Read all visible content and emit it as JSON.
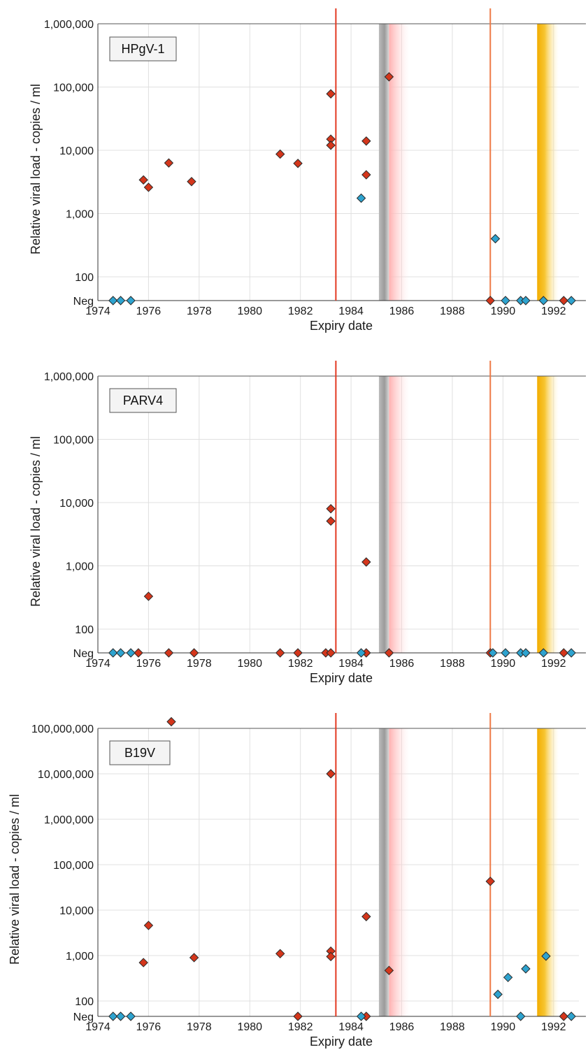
{
  "colors": {
    "positive": "#d4361b",
    "negative": "#2ea3cf",
    "marker_stroke": "#2a2a2a",
    "red_line": "#e23a22",
    "orange_line": "#ee7a45",
    "grey_band": "#a8a8a8",
    "pink_band": "#ffb3b3",
    "gold_band": "#f3b200",
    "grid": "#e0e0e0"
  },
  "chart_data": [
    {
      "type": "scatter",
      "title": "HPgV-1",
      "xlabel": "Expiry date",
      "ylabel": "Relative viral load - copies / ml",
      "xlim": [
        1974,
        1993
      ],
      "x_ticks": [
        1974,
        1976,
        1978,
        1980,
        1982,
        1984,
        1986,
        1988,
        1990,
        1992
      ],
      "y_scale": "log",
      "ylim": [
        100,
        1000000
      ],
      "y_ticks": [
        {
          "value": 100,
          "label": "100"
        },
        {
          "value": 1000,
          "label": "1,000"
        },
        {
          "value": 10000,
          "label": "10,000"
        },
        {
          "value": 100000,
          "label": "100,000"
        },
        {
          "value": 1000000,
          "label": "1,000,000"
        }
      ],
      "neg_label": "Neg",
      "vertical_lines": [
        {
          "x": 1983.4,
          "color": "red"
        },
        {
          "x": 1989.5,
          "color": "orange"
        }
      ],
      "bands": [
        {
          "x0": 1985.1,
          "x1": 1985.5,
          "style": "grey"
        },
        {
          "x0": 1985.5,
          "x1": 1986.3,
          "style": "pink"
        },
        {
          "x0": 1991.35,
          "x1": 1992.2,
          "style": "gold"
        }
      ],
      "grid": true,
      "series": [
        {
          "group": "positive",
          "points": [
            {
              "x": 1975.8,
              "y": 3400
            },
            {
              "x": 1976.0,
              "y": 2600
            },
            {
              "x": 1976.8,
              "y": 6300
            },
            {
              "x": 1977.7,
              "y": 3200
            },
            {
              "x": 1981.2,
              "y": 8700
            },
            {
              "x": 1981.9,
              "y": 6200
            },
            {
              "x": 1983.2,
              "y": 78000
            },
            {
              "x": 1983.2,
              "y": 15000
            },
            {
              "x": 1983.2,
              "y": 12000
            },
            {
              "x": 1984.6,
              "y": 14000
            },
            {
              "x": 1984.6,
              "y": 4100
            },
            {
              "x": 1985.5,
              "y": 145000
            },
            {
              "x": 1989.5,
              "y": "Neg"
            },
            {
              "x": 1992.4,
              "y": "Neg"
            }
          ]
        },
        {
          "group": "negative",
          "points": [
            {
              "x": 1974.6,
              "y": "Neg"
            },
            {
              "x": 1974.9,
              "y": "Neg"
            },
            {
              "x": 1975.3,
              "y": "Neg"
            },
            {
              "x": 1984.4,
              "y": 1750
            },
            {
              "x": 1989.7,
              "y": 400
            },
            {
              "x": 1990.1,
              "y": "Neg"
            },
            {
              "x": 1990.7,
              "y": "Neg"
            },
            {
              "x": 1990.9,
              "y": "Neg"
            },
            {
              "x": 1991.6,
              "y": "Neg"
            },
            {
              "x": 1992.7,
              "y": "Neg"
            }
          ]
        }
      ]
    },
    {
      "type": "scatter",
      "title": "PARV4",
      "xlabel": "Expiry date",
      "ylabel": "Relative viral load - copies / ml",
      "xlim": [
        1974,
        1993
      ],
      "x_ticks": [
        1974,
        1976,
        1978,
        1980,
        1982,
        1984,
        1986,
        1988,
        1990,
        1992
      ],
      "y_scale": "log",
      "ylim": [
        100,
        1000000
      ],
      "y_ticks": [
        {
          "value": 100,
          "label": "100"
        },
        {
          "value": 1000,
          "label": "1,000"
        },
        {
          "value": 10000,
          "label": "10,000"
        },
        {
          "value": 100000,
          "label": "100,000"
        },
        {
          "value": 1000000,
          "label": "1,000,000"
        }
      ],
      "neg_label": "Neg",
      "vertical_lines": [
        {
          "x": 1983.4,
          "color": "red"
        },
        {
          "x": 1989.5,
          "color": "orange"
        }
      ],
      "bands": [
        {
          "x0": 1985.1,
          "x1": 1985.5,
          "style": "grey"
        },
        {
          "x0": 1985.5,
          "x1": 1986.3,
          "style": "pink"
        },
        {
          "x0": 1991.35,
          "x1": 1992.2,
          "style": "gold"
        }
      ],
      "grid": true,
      "series": [
        {
          "group": "positive",
          "points": [
            {
              "x": 1975.6,
              "y": "Neg"
            },
            {
              "x": 1976.0,
              "y": 330
            },
            {
              "x": 1976.8,
              "y": "Neg"
            },
            {
              "x": 1977.8,
              "y": "Neg"
            },
            {
              "x": 1981.2,
              "y": "Neg"
            },
            {
              "x": 1981.9,
              "y": "Neg"
            },
            {
              "x": 1983.0,
              "y": "Neg"
            },
            {
              "x": 1983.2,
              "y": 8000
            },
            {
              "x": 1983.2,
              "y": 5100
            },
            {
              "x": 1983.2,
              "y": "Neg"
            },
            {
              "x": 1984.6,
              "y": 1150
            },
            {
              "x": 1984.6,
              "y": "Neg"
            },
            {
              "x": 1985.5,
              "y": "Neg"
            },
            {
              "x": 1989.5,
              "y": "Neg"
            },
            {
              "x": 1992.4,
              "y": "Neg"
            }
          ]
        },
        {
          "group": "negative",
          "points": [
            {
              "x": 1974.6,
              "y": "Neg"
            },
            {
              "x": 1974.9,
              "y": "Neg"
            },
            {
              "x": 1975.3,
              "y": "Neg"
            },
            {
              "x": 1984.4,
              "y": "Neg"
            },
            {
              "x": 1989.6,
              "y": "Neg"
            },
            {
              "x": 1990.1,
              "y": "Neg"
            },
            {
              "x": 1990.7,
              "y": "Neg"
            },
            {
              "x": 1990.9,
              "y": "Neg"
            },
            {
              "x": 1991.6,
              "y": "Neg"
            },
            {
              "x": 1992.7,
              "y": "Neg"
            }
          ]
        }
      ]
    },
    {
      "type": "scatter",
      "title": "B19V",
      "xlabel": "Expiry date",
      "ylabel": "Relative viral load - copies / ml",
      "xlim": [
        1974,
        1993
      ],
      "x_ticks": [
        1974,
        1976,
        1978,
        1980,
        1982,
        1984,
        1986,
        1988,
        1990,
        1992
      ],
      "y_scale": "log",
      "ylim": [
        100,
        100000000
      ],
      "y_ticks": [
        {
          "value": 100,
          "label": "100"
        },
        {
          "value": 1000,
          "label": "1,000"
        },
        {
          "value": 10000,
          "label": "10,000"
        },
        {
          "value": 100000,
          "label": "100,000"
        },
        {
          "value": 1000000,
          "label": "1,000,000"
        },
        {
          "value": 10000000,
          "label": "10,000,000"
        },
        {
          "value": 100000000,
          "label": "100,000,000"
        }
      ],
      "neg_label": "Neg",
      "vertical_lines": [
        {
          "x": 1983.4,
          "color": "red"
        },
        {
          "x": 1989.5,
          "color": "orange"
        }
      ],
      "bands": [
        {
          "x0": 1985.1,
          "x1": 1985.5,
          "style": "grey"
        },
        {
          "x0": 1985.5,
          "x1": 1986.3,
          "style": "pink"
        },
        {
          "x0": 1991.35,
          "x1": 1992.2,
          "style": "gold"
        }
      ],
      "grid": true,
      "series": [
        {
          "group": "positive",
          "points": [
            {
              "x": 1975.8,
              "y": 700
            },
            {
              "x": 1976.0,
              "y": 4600
            },
            {
              "x": 1976.9,
              "y": 140000000
            },
            {
              "x": 1977.8,
              "y": 900
            },
            {
              "x": 1981.2,
              "y": 1100
            },
            {
              "x": 1981.9,
              "y": "Neg"
            },
            {
              "x": 1983.2,
              "y": 10000000
            },
            {
              "x": 1983.2,
              "y": 1250
            },
            {
              "x": 1983.2,
              "y": 950
            },
            {
              "x": 1984.6,
              "y": 7200
            },
            {
              "x": 1984.6,
              "y": "Neg"
            },
            {
              "x": 1985.5,
              "y": 470
            },
            {
              "x": 1989.5,
              "y": 43000
            },
            {
              "x": 1992.4,
              "y": "Neg"
            }
          ]
        },
        {
          "group": "negative",
          "points": [
            {
              "x": 1974.6,
              "y": "Neg"
            },
            {
              "x": 1974.9,
              "y": "Neg"
            },
            {
              "x": 1975.3,
              "y": "Neg"
            },
            {
              "x": 1984.4,
              "y": "Neg"
            },
            {
              "x": 1989.8,
              "y": 140
            },
            {
              "x": 1990.2,
              "y": 330
            },
            {
              "x": 1990.7,
              "y": "Neg"
            },
            {
              "x": 1990.9,
              "y": 510
            },
            {
              "x": 1991.7,
              "y": 970
            },
            {
              "x": 1992.7,
              "y": "Neg"
            }
          ]
        }
      ]
    }
  ]
}
